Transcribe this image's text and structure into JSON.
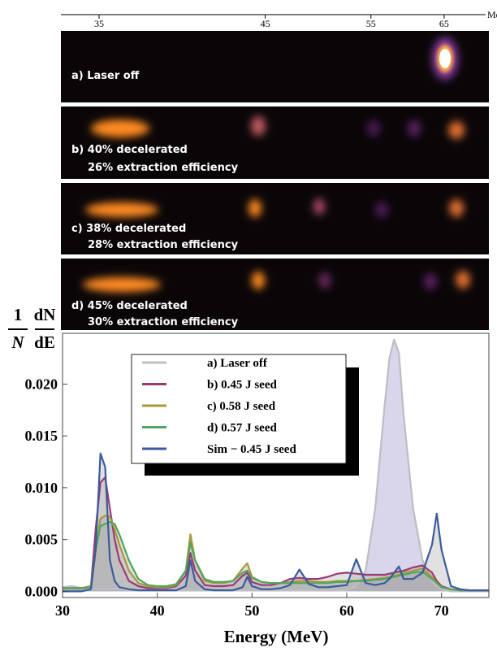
{
  "chart_data": {
    "type": "area",
    "top_axis": {
      "ticks": [
        35,
        45,
        55,
        65
      ],
      "unit": "MeV"
    },
    "panels": [
      [
        "a) Laser off"
      ],
      [
        "b) 40% decelerated",
        "26% extraction efficiency"
      ],
      [
        "c) 38% decelerated",
        "28% extraction efficiency"
      ],
      [
        "d) 45% decelerated",
        "30% extraction efficiency"
      ]
    ],
    "ylabel": [
      {
        "num": "1",
        "den": "N"
      },
      {
        "num": "dN",
        "den": "dE"
      }
    ],
    "xlabel": "Energy (MeV)",
    "xlim": [
      30,
      75
    ],
    "xticks": [
      30,
      40,
      50,
      60,
      70
    ],
    "ylim": [
      -0.0006,
      0.0249
    ],
    "yticks": [
      {
        "value": 0,
        "label": "0.000"
      },
      {
        "value": 0.005,
        "label": "0.005"
      },
      {
        "value": 0.01,
        "label": "0.010"
      },
      {
        "value": 0.015,
        "label": "0.015"
      },
      {
        "value": 0.02,
        "label": "0.020"
      }
    ],
    "fill": true,
    "x": [
      30,
      31,
      32,
      33,
      33.5,
      34,
      34.5,
      35,
      35.5,
      36,
      37,
      38,
      39,
      40,
      41,
      42,
      43,
      43.5,
      44,
      45,
      46,
      47,
      48,
      49,
      49.5,
      50,
      51,
      52,
      53,
      54,
      55,
      56,
      57,
      58,
      59,
      60,
      61,
      62,
      63,
      64,
      64.5,
      65,
      65.5,
      66,
      67,
      68,
      69,
      69.5,
      70,
      71,
      72,
      73,
      74,
      75
    ],
    "series": [
      {
        "name": "a) Laser off",
        "color": "#bdbdc4",
        "fill_color": "#cfcbe6",
        "values": [
          0.0004,
          0.0005,
          0.0003,
          0.0002,
          0.0002,
          0.0002,
          0.0002,
          0.0002,
          0.0002,
          0.0002,
          0.0001,
          0.0001,
          0.0001,
          0.0001,
          0.0001,
          0.0001,
          0.0001,
          0.0001,
          0.0001,
          0.0001,
          0.0001,
          0.0001,
          0.0001,
          0.0001,
          0.0001,
          0.0001,
          0.0001,
          0.0001,
          0.0001,
          0.0001,
          0.0001,
          0.0001,
          0.0001,
          0.0001,
          0.0001,
          0.0001,
          0.0005,
          0.002,
          0.008,
          0.018,
          0.0225,
          0.0243,
          0.023,
          0.017,
          0.008,
          0.003,
          0.001,
          0.0005,
          0.0002,
          0,
          0,
          0,
          0,
          0
        ]
      },
      {
        "name": "b) 0.45 J seed",
        "color": "#9b3a72",
        "fill_color": "#a8a8a8",
        "values": [
          0.0003,
          0.0003,
          0.0003,
          0.0005,
          0.006,
          0.0105,
          0.011,
          0.008,
          0.005,
          0.003,
          0.001,
          0.0005,
          0.0003,
          0.0003,
          0.0003,
          0.0005,
          0.0015,
          0.0037,
          0.002,
          0.0006,
          0.0005,
          0.0005,
          0.0006,
          0.0015,
          0.0018,
          0.0009,
          0.0006,
          0.0006,
          0.0008,
          0.0012,
          0.0013,
          0.0012,
          0.0012,
          0.0014,
          0.0017,
          0.0018,
          0.0017,
          0.0016,
          0.0016,
          0.0016,
          0.0017,
          0.0018,
          0.0019,
          0.002,
          0.0023,
          0.0025,
          0.0018,
          0.001,
          0.0005,
          0.0002,
          0.0001,
          0.0001,
          0.0001,
          0.0001
        ]
      },
      {
        "name": "c) 0.58 J seed",
        "color": "#a8983a",
        "fill_color": "#a8a8a8",
        "values": [
          0.0003,
          0.0003,
          0.0003,
          0.0005,
          0.004,
          0.007,
          0.0073,
          0.0072,
          0.006,
          0.0045,
          0.002,
          0.0008,
          0.0005,
          0.0004,
          0.0004,
          0.0006,
          0.002,
          0.0055,
          0.003,
          0.001,
          0.0008,
          0.0008,
          0.001,
          0.0022,
          0.0027,
          0.0014,
          0.0009,
          0.0008,
          0.0008,
          0.0009,
          0.001,
          0.001,
          0.0009,
          0.0009,
          0.001,
          0.001,
          0.001,
          0.0011,
          0.0012,
          0.0013,
          0.0014,
          0.0015,
          0.0016,
          0.0018,
          0.002,
          0.0022,
          0.0014,
          0.0008,
          0.0004,
          0.0002,
          0.0001,
          0.0001,
          0.0001,
          0.0001
        ]
      },
      {
        "name": "d) 0.57 J seed",
        "color": "#4fa65c",
        "fill_color": "#a8a8a8",
        "values": [
          0.0003,
          0.0003,
          0.0003,
          0.0004,
          0.004,
          0.0063,
          0.0065,
          0.0067,
          0.0065,
          0.0055,
          0.003,
          0.0012,
          0.0006,
          0.0005,
          0.0005,
          0.0007,
          0.002,
          0.0047,
          0.003,
          0.0012,
          0.0009,
          0.0009,
          0.001,
          0.0018,
          0.002,
          0.0013,
          0.0009,
          0.0008,
          0.0008,
          0.0008,
          0.0008,
          0.0008,
          0.0008,
          0.0008,
          0.0009,
          0.0009,
          0.001,
          0.001,
          0.0011,
          0.0012,
          0.0013,
          0.0014,
          0.0015,
          0.0016,
          0.0018,
          0.0019,
          0.0012,
          0.0008,
          0.0004,
          0.0002,
          0.0001,
          0.0001,
          0.0001,
          0.0001
        ]
      },
      {
        "name": "Sim − 0.45 J seed",
        "color": "#3b5b9c",
        "fill_color": "#a8a8a8",
        "values": [
          0,
          0,
          0,
          0.0002,
          0.004,
          0.0133,
          0.012,
          0.003,
          0.001,
          0.0004,
          0.0002,
          0.0001,
          0.0001,
          0.0001,
          0.0001,
          0.0001,
          0.0005,
          0.003,
          0.001,
          0.0002,
          0.0001,
          0.0001,
          0.0001,
          0.0004,
          0.0014,
          0.0005,
          0.0002,
          0.0002,
          0.0003,
          0.0006,
          0.0021,
          0.0007,
          0.0004,
          0.0004,
          0.0005,
          0.0006,
          0.0031,
          0.0008,
          0.0006,
          0.0008,
          0.0012,
          0.0018,
          0.0024,
          0.0012,
          0.0012,
          0.0018,
          0.0045,
          0.0075,
          0.004,
          0.0005,
          0.0002,
          0.0001,
          0.0001,
          0.0001
        ]
      }
    ]
  }
}
